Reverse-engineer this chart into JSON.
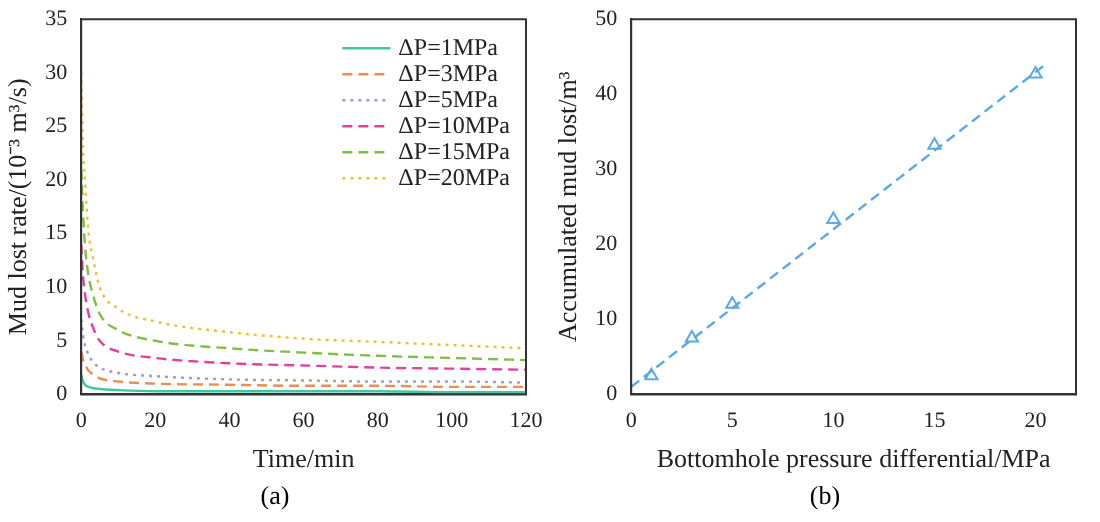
{
  "chart_data": [
    {
      "type": "line",
      "xlabel": "Time/min",
      "ylabel": "Mud lost rate/(10⁻³ m³/s)",
      "annotations": [
        "(a)"
      ],
      "x": [
        0,
        0.5,
        1,
        2,
        3,
        5,
        10,
        20,
        40,
        60,
        80,
        100,
        120
      ],
      "xlim": [
        0,
        120
      ],
      "xticks": [
        0,
        20,
        40,
        60,
        80,
        100,
        120
      ],
      "ylim": [
        0,
        35
      ],
      "yticks": [
        0,
        5,
        10,
        15,
        20,
        25,
        30,
        35
      ],
      "legend": "top right",
      "grid": false,
      "marker": "none",
      "series": [
        {
          "name": "ΔP=1MPa",
          "color": "#3cc8a0",
          "line_style": "solid",
          "values": [
            1.8,
            1.2,
            0.9,
            0.7,
            0.6,
            0.5,
            0.4,
            0.3,
            0.3,
            0.3,
            0.3,
            0.2,
            0.2
          ]
        },
        {
          "name": "ΔP=3MPa",
          "color": "#f08c50",
          "line_style": "dashed",
          "values": [
            4,
            3.2,
            2.8,
            2.2,
            1.9,
            1.5,
            1.2,
            1.0,
            0.9,
            0.8,
            0.8,
            0.7,
            0.7
          ]
        },
        {
          "name": "ΔP=5MPa",
          "color": "#9a9ae0",
          "line_style": "dotted",
          "values": [
            7,
            5.5,
            4.6,
            3.7,
            3.1,
            2.5,
            2,
            1.7,
            1.4,
            1.3,
            1.2,
            1.2,
            1.1
          ]
        },
        {
          "name": "ΔP=10MPa",
          "color": "#e040a0",
          "line_style": "dashed",
          "values": [
            14,
            11,
            9.4,
            7.5,
            6.4,
            5,
            4,
            3.4,
            2.9,
            2.7,
            2.5,
            2.4,
            2.3
          ]
        },
        {
          "name": "ΔP=15MPa",
          "color": "#80c040",
          "line_style": "dashed",
          "values": [
            21,
            17,
            14,
            11,
            9.5,
            7.5,
            6,
            5,
            4.3,
            3.9,
            3.6,
            3.4,
            3.2
          ]
        },
        {
          "name": "ΔP=20MPa",
          "color": "#f0c030",
          "line_style": "dotted",
          "values": [
            30,
            23,
            20,
            15,
            13,
            10,
            8,
            6.8,
            5.8,
            5.2,
            4.9,
            4.6,
            4.3
          ]
        }
      ]
    },
    {
      "type": "scatter",
      "xlabel": "Bottomhole pressure differential/MPa",
      "ylabel": "Accumulated mud lost/m³",
      "annotations": [
        "(b)"
      ],
      "xlim": [
        0,
        22
      ],
      "xticks": [
        0,
        5,
        10,
        15,
        20
      ],
      "ylim": [
        0,
        50
      ],
      "yticks": [
        0,
        10,
        20,
        30,
        40,
        50
      ],
      "grid": false,
      "series": [
        {
          "color": "#5aa8e8",
          "marker": "triangle",
          "x": [
            1,
            3,
            5,
            10,
            15,
            20
          ],
          "values": [
            2.5,
            7.5,
            12,
            23.3,
            33.2,
            42.7
          ]
        },
        {
          "type": "line",
          "color": "#5aa8e8",
          "line_style": "dashed",
          "marker": "none",
          "x": [
            0,
            10,
            20.5
          ],
          "values": [
            1,
            22,
            44
          ]
        }
      ]
    }
  ]
}
